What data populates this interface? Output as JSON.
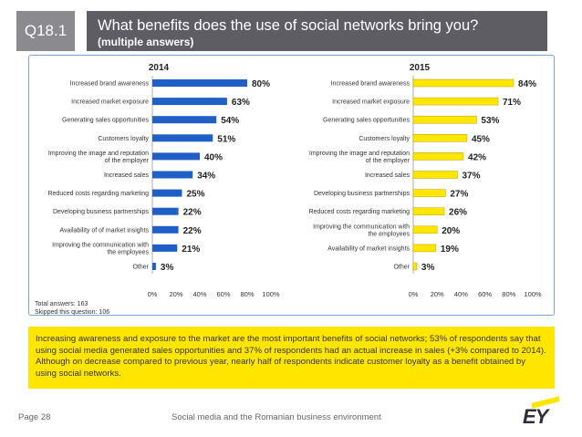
{
  "header": {
    "question_id": "Q18.1",
    "title": "What benefits does the use of social networks bring you?",
    "subtitle": "(multiple answers)"
  },
  "colors": {
    "bar_2014": "#1f5fc6",
    "bar_2015": "#ffe600",
    "summary_bg": "#ffe600",
    "title_bg": "#5d5d63",
    "badge_bg": "#8a8a8f"
  },
  "notes": {
    "total": "Total answers: 163",
    "skipped": "Skipped this question: 106"
  },
  "chart_data": [
    {
      "type": "bar",
      "orientation": "horizontal",
      "title": "2014",
      "categories": [
        "Increased brand awareness",
        "Increased market exposure",
        "Generating sales opportunities",
        "Customers loyalty",
        "Improving the image and reputation of the employer",
        "Increased sales",
        "Reduced costs regarding marketing",
        "Developing business partnerships",
        "Availability of of market insights",
        "Improving the communication with the employees",
        "Other"
      ],
      "values": [
        80,
        63,
        54,
        51,
        40,
        34,
        25,
        22,
        22,
        21,
        3
      ],
      "value_labels": [
        "80%",
        "63%",
        "54%",
        "51%",
        "40%",
        "34%",
        "25%",
        "22%",
        "22%",
        "21%",
        "3%"
      ],
      "xlim": [
        0,
        100
      ],
      "xticks": [
        "0%",
        "20%",
        "40%",
        "60%",
        "80%",
        "100%"
      ],
      "xlabel": "",
      "ylabel": ""
    },
    {
      "type": "bar",
      "orientation": "horizontal",
      "title": "2015",
      "categories": [
        "Increased brand awareness",
        "Increased market exposure",
        "Generating sales opportunities",
        "Customers loyalty",
        "Improving the image and reputation of the employer",
        "Increased sales",
        "Developing business partnerships",
        "Reduced costs regarding marketing",
        "Improving the communication with the employees",
        "Availability of market insights",
        "Other"
      ],
      "values": [
        84,
        71,
        53,
        45,
        42,
        37,
        27,
        26,
        20,
        19,
        3
      ],
      "value_labels": [
        "84%",
        "71%",
        "53%",
        "45%",
        "42%",
        "37%",
        "27%",
        "26%",
        "20%",
        "19%",
        "3%"
      ],
      "xlim": [
        0,
        100
      ],
      "xticks": [
        "0%",
        "20%",
        "40%",
        "60%",
        "80%",
        "100%"
      ],
      "xlabel": "",
      "ylabel": ""
    }
  ],
  "summary": "Increasing awareness and exposure to the market are the most important benefits of social networks; 53% of respondents say that using social media generated sales opportunities and 37% of respondents had an actual increase in sales (+3% compared to 2014). Although on decrease compared to previous year, nearly half of respondents indicate customer loyalty as a benefit obtained by using social networks.",
  "footer": {
    "page": "Page 28",
    "caption": "Social media and the Romanian business environment",
    "logo": "EY"
  }
}
